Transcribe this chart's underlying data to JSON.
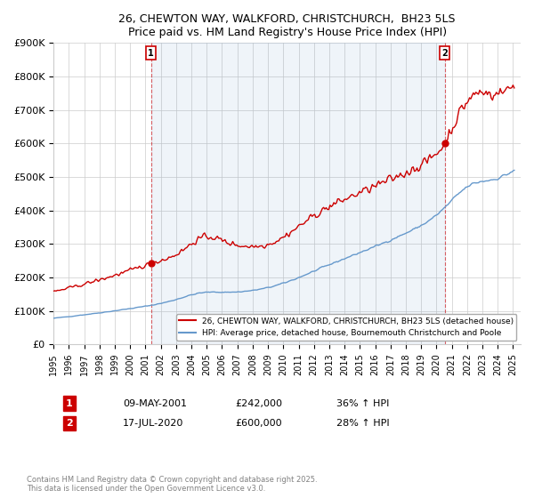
{
  "title": "26, CHEWTON WAY, WALKFORD, CHRISTCHURCH,  BH23 5LS",
  "subtitle": "Price paid vs. HM Land Registry's House Price Index (HPI)",
  "ylabel_ticks": [
    "£0",
    "£100K",
    "£200K",
    "£300K",
    "£400K",
    "£500K",
    "£600K",
    "£700K",
    "£800K",
    "£900K"
  ],
  "ytick_values": [
    0,
    100000,
    200000,
    300000,
    400000,
    500000,
    600000,
    700000,
    800000,
    900000
  ],
  "ylim": [
    0,
    900000
  ],
  "purchase1": {
    "year": 2001.36,
    "price": 242000,
    "date": "09-MAY-2001",
    "hpi_diff": "36% ↑ HPI",
    "label": "1"
  },
  "purchase2": {
    "year": 2020.54,
    "price": 600000,
    "date": "17-JUL-2020",
    "hpi_diff": "28% ↑ HPI",
    "label": "2"
  },
  "red_color": "#cc0000",
  "blue_color": "#6699cc",
  "fill_color": "#ddeeff",
  "legend1": "26, CHEWTON WAY, WALKFORD, CHRISTCHURCH, BH23 5LS (detached house)",
  "legend2": "HPI: Average price, detached house, Bournemouth Christchurch and Poole",
  "footer": "Contains HM Land Registry data © Crown copyright and database right 2025.\nThis data is licensed under the Open Government Licence v3.0.",
  "background_color": "#ffffff",
  "grid_color": "#cccccc",
  "annotation_box_color": "#cc0000",
  "xlim_start": 1995,
  "xlim_end": 2025.5
}
